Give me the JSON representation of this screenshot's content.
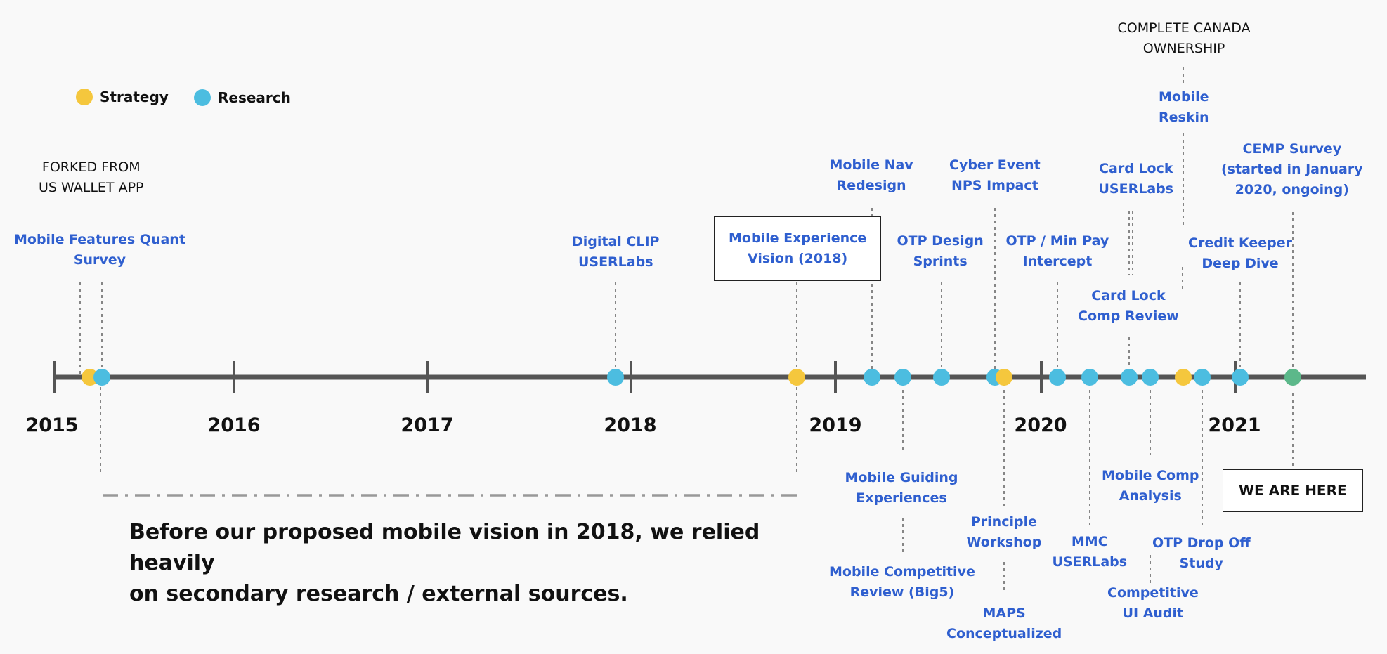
{
  "colors": {
    "strategy": "#f5c73d",
    "research": "#4cbde0",
    "today": "#5cb88a",
    "label_blue": "#2f5fcf",
    "axis": "#555555"
  },
  "legend": [
    {
      "label": "Strategy",
      "color": "#f5c73d"
    },
    {
      "label": "Research",
      "color": "#4cbde0"
    }
  ],
  "years": [
    "2015",
    "2016",
    "2017",
    "2018",
    "2019",
    "2020",
    "2021"
  ],
  "events": [
    {
      "label": "Mobile Features Quant\nSurvey",
      "date": "2015-03",
      "type": "research"
    },
    {
      "label": "Digital CLIP\nUSERLabs",
      "date": "2017-11",
      "type": "research"
    },
    {
      "label": "Mobile Experience\nVision (2018)",
      "date": "2018-10",
      "type": "strategy"
    },
    {
      "label": "Mobile Nav\nRedesign",
      "date": "2019-02",
      "type": "research"
    },
    {
      "label": "Mobile Guiding\nExperiences",
      "date": "2019-04",
      "type": "research"
    },
    {
      "label": "Mobile Competitive\nReview (Big5)",
      "date": "2019-04",
      "type": "research"
    },
    {
      "label": "OTP Design\nSprints",
      "date": "2019-06",
      "type": "research"
    },
    {
      "label": "Cyber Event\nNPS Impact",
      "date": "2019-09",
      "type": "research"
    },
    {
      "label": "Principle\nWorkshop",
      "date": "2019-10",
      "type": "strategy"
    },
    {
      "label": "MAPS\nConceptualized",
      "date": "2019-10",
      "type": "strategy"
    },
    {
      "label": "OTP / Min Pay\nIntercept",
      "date": "2020-01",
      "type": "research"
    },
    {
      "label": "MMC\nUSERLabs",
      "date": "2020-03",
      "type": "research"
    },
    {
      "label": "Card Lock\nUSERLabs",
      "date": "2020-05",
      "type": "research"
    },
    {
      "label": "Card Lock\nComp Review",
      "date": "2020-05",
      "type": "research"
    },
    {
      "label": "Mobile Comp\nAnalysis",
      "date": "2020-06",
      "type": "research"
    },
    {
      "label": "Competitive\nUI Audit",
      "date": "2020-06",
      "type": "research"
    },
    {
      "label": "Mobile\nReskin",
      "date": "2020-08",
      "type": "strategy"
    },
    {
      "label": "OTP Drop Off\nStudy",
      "date": "2020-09",
      "type": "research"
    },
    {
      "label": "Credit Keeper\nDeep Dive",
      "date": "2021-01",
      "type": "research"
    },
    {
      "label": "CEMP Survey\n(started in January\n2020, ongoing)",
      "date": "2021-04",
      "type": "today"
    }
  ],
  "notes": {
    "forked": "FORKED FROM\nUS WALLET APP",
    "canada": "COMPLETE CANADA\nOWNERSHIP",
    "here": "WE ARE HERE"
  },
  "caption": "Before our proposed mobile vision in 2018, we relied heavily\non secondary research / external sources."
}
